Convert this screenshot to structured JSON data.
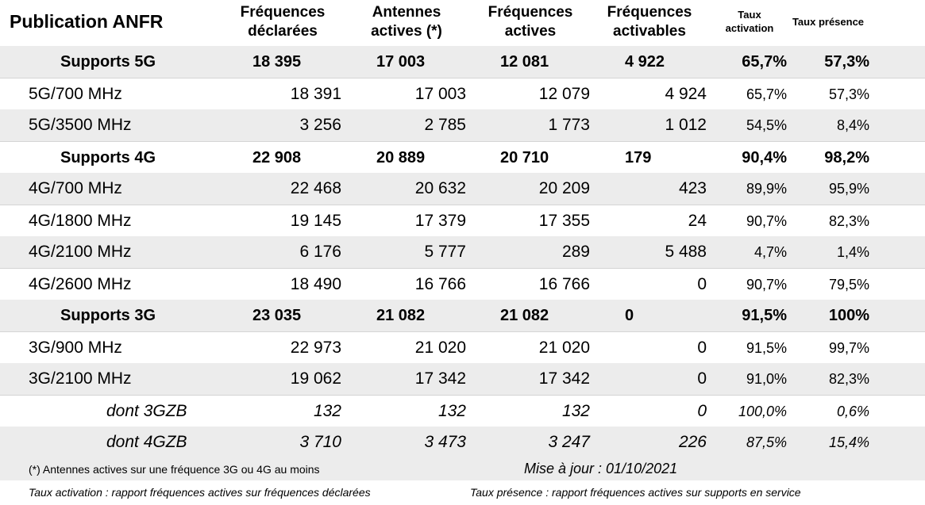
{
  "header": {
    "title": "Publication ANFR",
    "col_freq_declared": [
      "Fréquences",
      "déclarées"
    ],
    "col_antennas_active": [
      "Antennes",
      "actives (*)"
    ],
    "col_freq_active": [
      "Fréquences",
      "actives"
    ],
    "col_freq_activable": [
      "Fréquences",
      "activables"
    ],
    "col_rate_activation": [
      "Taux",
      "activation"
    ],
    "col_rate_presence": "Taux présence"
  },
  "rows": [
    {
      "kind": "group",
      "label": "Supports 5G",
      "declared": "18 395",
      "antennas": "17 003",
      "active": "12 081",
      "activable": "4 922",
      "activation": "65,7%",
      "presence": "57,3%"
    },
    {
      "kind": "band",
      "label": "5G/700 MHz",
      "declared": "18 391",
      "antennas": "17 003",
      "active": "12 079",
      "activable": "4 924",
      "activation": "65,7%",
      "presence": "57,3%"
    },
    {
      "kind": "band",
      "label": "5G/3500 MHz",
      "declared": "3 256",
      "antennas": "2 785",
      "active": "1 773",
      "activable": "1 012",
      "activation": "54,5%",
      "presence": "8,4%"
    },
    {
      "kind": "group",
      "label": "Supports 4G",
      "declared": "22 908",
      "antennas": "20 889",
      "active": "20 710",
      "activable": "179",
      "activation": "90,4%",
      "presence": "98,2%"
    },
    {
      "kind": "band",
      "label": "4G/700 MHz",
      "declared": "22 468",
      "antennas": "20 632",
      "active": "20 209",
      "activable": "423",
      "activation": "89,9%",
      "presence": "95,9%"
    },
    {
      "kind": "band",
      "label": "4G/1800 MHz",
      "declared": "19 145",
      "antennas": "17 379",
      "active": "17 355",
      "activable": "24",
      "activation": "90,7%",
      "presence": "82,3%"
    },
    {
      "kind": "band",
      "label": "4G/2100 MHz",
      "declared": "6 176",
      "antennas": "5 777",
      "active": "289",
      "activable": "5 488",
      "activation": "4,7%",
      "presence": "1,4%"
    },
    {
      "kind": "band",
      "label": "4G/2600 MHz",
      "declared": "18 490",
      "antennas": "16 766",
      "active": "16 766",
      "activable": "0",
      "activation": "90,7%",
      "presence": "79,5%"
    },
    {
      "kind": "group",
      "label": "Supports 3G",
      "declared": "23 035",
      "antennas": "21 082",
      "active": "21 082",
      "activable": "0",
      "activation": "91,5%",
      "presence": "100%"
    },
    {
      "kind": "band",
      "label": "3G/900 MHz",
      "declared": "22 973",
      "antennas": "21 020",
      "active": "21 020",
      "activable": "0",
      "activation": "91,5%",
      "presence": "99,7%"
    },
    {
      "kind": "band",
      "label": "3G/2100 MHz",
      "declared": "19 062",
      "antennas": "17 342",
      "active": "17 342",
      "activable": "0",
      "activation": "91,0%",
      "presence": "82,3%"
    },
    {
      "kind": "sub",
      "label": "dont 3GZB",
      "declared": "132",
      "antennas": "132",
      "active": "132",
      "activable": "0",
      "activation": "100,0%",
      "presence": "0,6%"
    },
    {
      "kind": "sub",
      "label": "dont 4GZB",
      "declared": "3 710",
      "antennas": "3 473",
      "active": "3 247",
      "activable": "226",
      "activation": "87,5%",
      "presence": "15,4%"
    }
  ],
  "footer": {
    "note": "(*) Antennes actives sur une fréquence 3G ou 4G au moins",
    "update": "Mise à jour : 01/10/2021",
    "def_activation": "Taux activation : rapport fréquences actives sur fréquences déclarées",
    "def_presence": "Taux présence : rapport fréquences actives sur supports en service"
  }
}
